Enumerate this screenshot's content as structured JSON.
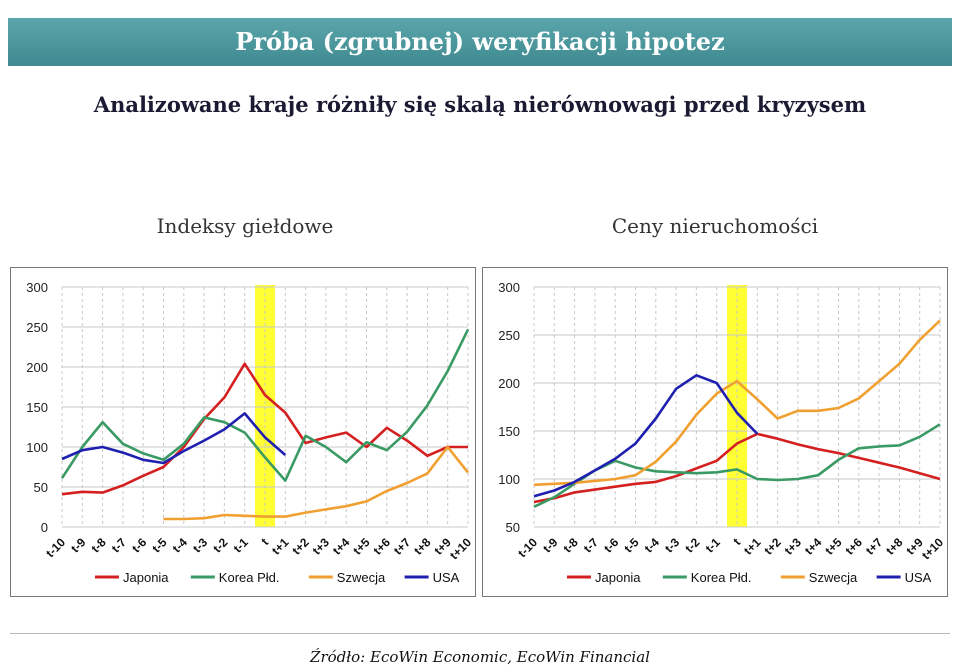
{
  "banner_title": "Próba (zgrubnej) weryfikacji hipotez",
  "headline": "Analizowane kraje różniły się skalą nierównowagi przed kryzysem",
  "source": "Źródło: EcoWin Economic, EcoWin Financial",
  "colors": {
    "Japonia": "#d42020",
    "Korea Płd.": "#3a9a64",
    "Szwecja": "#f0a030",
    "USA": "#2020b0",
    "highlight": "#ffff33"
  },
  "chart_data": [
    {
      "type": "line",
      "title": "Indeksy giełdowe",
      "categories": [
        "t-10",
        "t-9",
        "t-8",
        "t-7",
        "t-6",
        "t-5",
        "t-4",
        "t-3",
        "t-2",
        "t-1",
        "t",
        "t+1",
        "t+2",
        "t+3",
        "t+4",
        "t+5",
        "t+6",
        "t+7",
        "t+8",
        "t+9",
        "t+10"
      ],
      "ylim": [
        0,
        300
      ],
      "yticks": [
        0,
        50,
        100,
        150,
        200,
        250,
        300
      ],
      "highlight_category": "t",
      "legend_placement": "bottom",
      "series": [
        {
          "name": "Japonia",
          "values": [
            41,
            44,
            43,
            52,
            64,
            75,
            100,
            135,
            162,
            204,
            165,
            143,
            105,
            112,
            118,
            100,
            124,
            108,
            89,
            100,
            100
          ]
        },
        {
          "name": "Korea Płd.",
          "values": [
            61,
            100,
            131,
            104,
            92,
            84,
            104,
            137,
            131,
            118,
            87,
            58,
            114,
            100,
            81,
            106,
            96,
            119,
            152,
            195,
            247
          ]
        },
        {
          "name": "Szwecja",
          "values": [
            null,
            null,
            null,
            null,
            null,
            10,
            10,
            11,
            15,
            14,
            13,
            13,
            18,
            22,
            26,
            32,
            45,
            55,
            67,
            100,
            68
          ]
        },
        {
          "name": "USA",
          "values": [
            85,
            96,
            100,
            93,
            84,
            80,
            95,
            108,
            122,
            142,
            112,
            90,
            null,
            null,
            null,
            null,
            null,
            null,
            null,
            null,
            null
          ]
        }
      ]
    },
    {
      "type": "line",
      "title": "Ceny nieruchomości",
      "categories": [
        "t-10",
        "t-9",
        "t-8",
        "t-7",
        "t-6",
        "t-5",
        "t-4",
        "t-3",
        "t-2",
        "t-1",
        "t",
        "t+1",
        "t+2",
        "t+3",
        "t+4",
        "t+5",
        "t+6",
        "t+7",
        "t+8",
        "t+9",
        "t+10"
      ],
      "ylim": [
        50,
        300
      ],
      "yticks": [
        50,
        100,
        150,
        200,
        250,
        300
      ],
      "highlight_category": "t",
      "legend_placement": "bottom",
      "series": [
        {
          "name": "Japonia",
          "values": [
            76,
            80,
            86,
            89,
            92,
            95,
            97,
            103,
            111,
            119,
            137,
            147,
            142,
            136,
            131,
            127,
            122,
            117,
            112,
            106,
            100
          ]
        },
        {
          "name": "Korea Płd.",
          "values": [
            71,
            81,
            95,
            109,
            119,
            112,
            108,
            107,
            106,
            107,
            110,
            100,
            99,
            100,
            104,
            120,
            132,
            134,
            135,
            144,
            157
          ]
        },
        {
          "name": "Szwecja",
          "values": [
            94,
            95,
            96,
            98,
            100,
            104,
            118,
            139,
            167,
            189,
            202,
            183,
            163,
            171,
            171,
            174,
            184,
            202,
            220,
            245,
            265
          ]
        },
        {
          "name": "USA",
          "values": [
            82,
            88,
            97,
            109,
            121,
            137,
            163,
            194,
            208,
            200,
            169,
            147,
            null,
            null,
            null,
            null,
            null,
            null,
            null,
            null,
            null
          ]
        }
      ]
    }
  ]
}
